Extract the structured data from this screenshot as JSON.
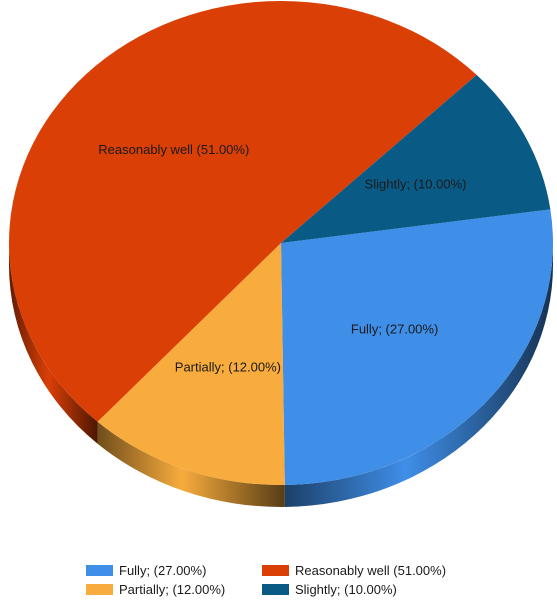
{
  "chart_data": {
    "type": "pie",
    "title": "",
    "slices": [
      {
        "label": "Fully; (27.00%)",
        "value": 27,
        "color": "#3f8ee8"
      },
      {
        "label": "Partially; (12.00%)",
        "value": 12,
        "color": "#f8ac3d"
      },
      {
        "label": "Reasonably well (51.00%)",
        "value": 51,
        "color": "#da3f06"
      },
      {
        "label": "Slightly; (10.00%)",
        "value": 10,
        "color": "#0a5a86"
      }
    ],
    "legend": {
      "placement": "bottom",
      "order": [
        0,
        2,
        1,
        3
      ]
    },
    "style": "3d"
  }
}
